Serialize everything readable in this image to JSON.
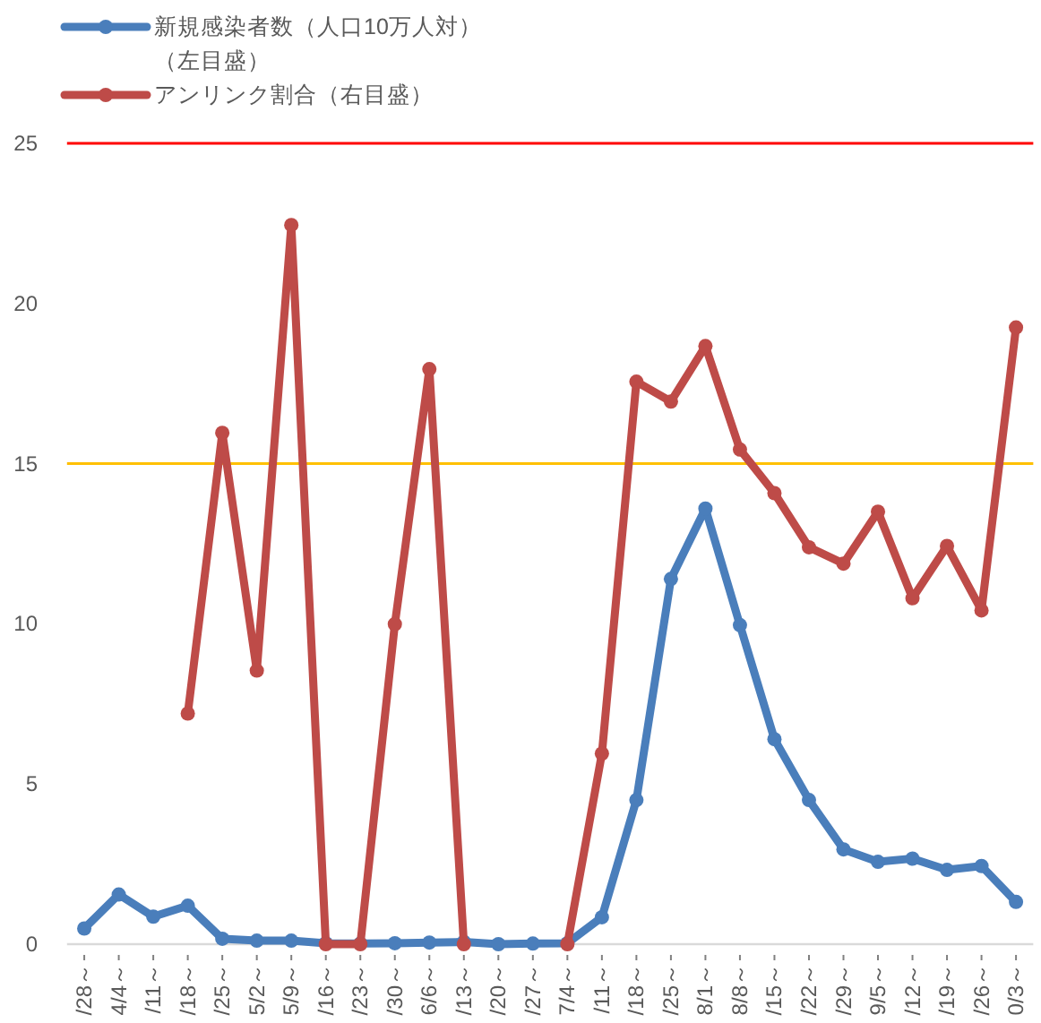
{
  "chart_data": {
    "type": "line",
    "categories": [
      "/28～",
      "4/4～",
      "/11～",
      "/18～",
      "/25～",
      "5/2～",
      "5/9～",
      "/16～",
      "/23～",
      "/30～",
      "6/6～",
      "/13～",
      "/20～",
      "/27～",
      "7/4～",
      "/11～",
      "/18～",
      "/25～",
      "8/1～",
      "8/8～",
      "/15～",
      "/22～",
      "/29～",
      "9/5～",
      "/12～",
      "/19～",
      "/26～",
      "0/3～"
    ],
    "series": [
      {
        "name": "新規感染者数（人口10万人対）（左目盛）",
        "color": "#4a7ebb",
        "values": [
          0.49,
          1.55,
          0.86,
          1.2,
          0.17,
          0.11,
          0.11,
          0.03,
          0.02,
          0.03,
          0.05,
          0.07,
          0.0,
          0.02,
          0.03,
          0.84,
          4.5,
          11.4,
          13.6,
          9.96,
          6.4,
          4.5,
          2.96,
          2.57,
          2.67,
          2.32,
          2.44,
          1.32
        ]
      },
      {
        "name": "アンリンク割合（右目盛）",
        "color": "#be4b48",
        "values": [
          null,
          null,
          null,
          7.2,
          15.96,
          8.54,
          22.45,
          0,
          0,
          9.99,
          17.95,
          0,
          null,
          null,
          0,
          5.95,
          17.56,
          16.94,
          18.67,
          15.44,
          14.08,
          12.39,
          11.88,
          13.5,
          10.8,
          12.43,
          10.42,
          19.25
        ]
      }
    ],
    "ylim": [
      0,
      25
    ],
    "yticks": [
      0,
      5,
      10,
      15,
      20,
      25
    ],
    "ref_lines": [
      {
        "axis": "y",
        "value": 25,
        "color": "#ff0000"
      },
      {
        "axis": "y",
        "value": 15,
        "color": "#ffc000"
      }
    ],
    "legend": "top left",
    "marker": "circle",
    "line_style": "solid",
    "grid": false
  }
}
